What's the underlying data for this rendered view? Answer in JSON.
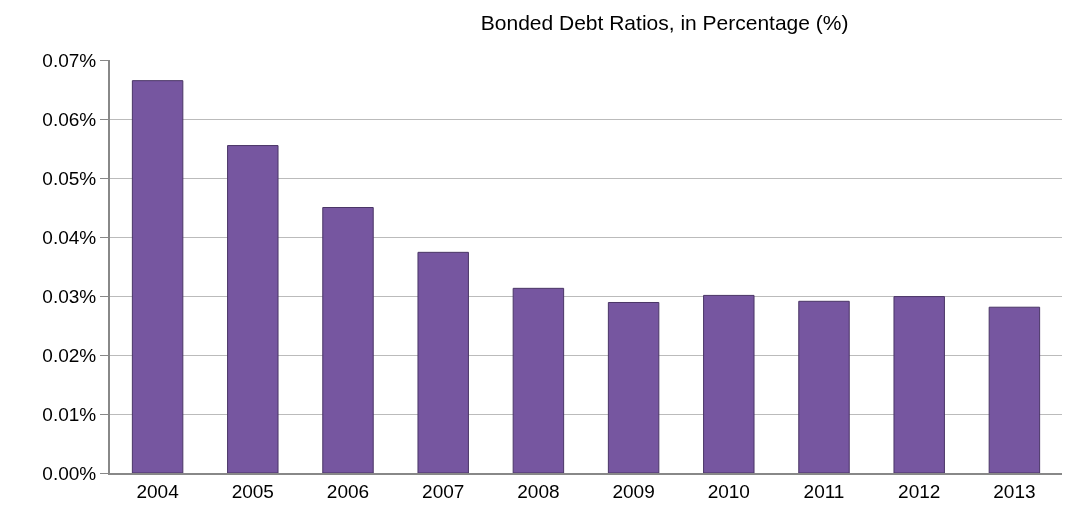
{
  "chart_data": {
    "type": "bar",
    "title": "Bonded Debt Ratios, in Percentage (%)",
    "categories": [
      "2004",
      "2005",
      "2006",
      "2007",
      "2008",
      "2009",
      "2010",
      "2011",
      "2012",
      "2013"
    ],
    "values": [
      0.0665,
      0.0555,
      0.045,
      0.0374,
      0.0313,
      0.0289,
      0.0301,
      0.0291,
      0.0299,
      0.0281
    ],
    "color": "#7656a0",
    "ylim": [
      0,
      0.07
    ],
    "yticks": [
      {
        "value": 0,
        "label": "0.00%"
      },
      {
        "value": 0.01,
        "label": "0.01%"
      },
      {
        "value": 0.02,
        "label": "0.02%"
      },
      {
        "value": 0.03,
        "label": "0.03%"
      },
      {
        "value": 0.04,
        "label": "0.04%"
      },
      {
        "value": 0.05,
        "label": "0.05%"
      },
      {
        "value": 0.06,
        "label": "0.06%"
      },
      {
        "value": 0.07,
        "label": "0.07%"
      }
    ],
    "grid": "y"
  }
}
